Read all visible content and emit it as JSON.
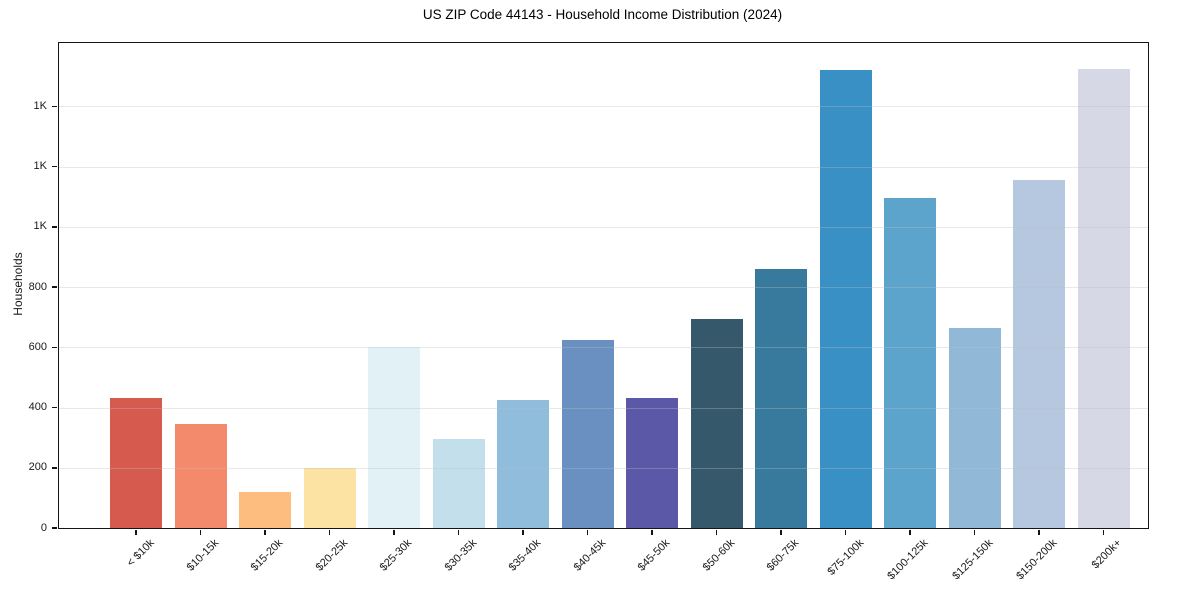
{
  "chart_data": {
    "type": "bar",
    "title": "US ZIP Code 44143 - Household Income Distribution (2024)",
    "xlabel": "",
    "ylabel": "Households",
    "categories": [
      "< $10k",
      "$10-15k",
      "$15-20k",
      "$20-25k",
      "$25-30k",
      "$30-35k",
      "$35-40k",
      "$40-45k",
      "$45-50k",
      "$50-60k",
      "$60-75k",
      "$75-100k",
      "$100-125k",
      "$125-150k",
      "$150-200k",
      "$200k+"
    ],
    "values": [
      430,
      345,
      120,
      200,
      600,
      295,
      425,
      625,
      430,
      695,
      860,
      1520,
      1095,
      665,
      1155,
      1525
    ],
    "bar_colors": [
      "#d65a4e",
      "#f48a6c",
      "#fcbd7f",
      "#fde3a3",
      "#e2f1f6",
      "#c3dfec",
      "#90bddc",
      "#6a90c2",
      "#5b59a7",
      "#35596b",
      "#377a9e",
      "#3890c4",
      "#5ca4cb",
      "#91b8d7",
      "#b5c8df",
      "#d6d8e6"
    ],
    "ylim": [
      0,
      1610
    ],
    "ytick_values": [
      0,
      200,
      400,
      600,
      800,
      1000,
      1200,
      1400
    ],
    "ytick_labels": [
      "0",
      "200",
      "400",
      "600",
      "800",
      "1K",
      "1K",
      "1K"
    ],
    "grid": "horizontal-only, light gray, drawn over bars",
    "legend": "none",
    "plot_background": "#ffffff",
    "axis_color": "#141414",
    "tick_label_color": "#1a1a1a"
  }
}
